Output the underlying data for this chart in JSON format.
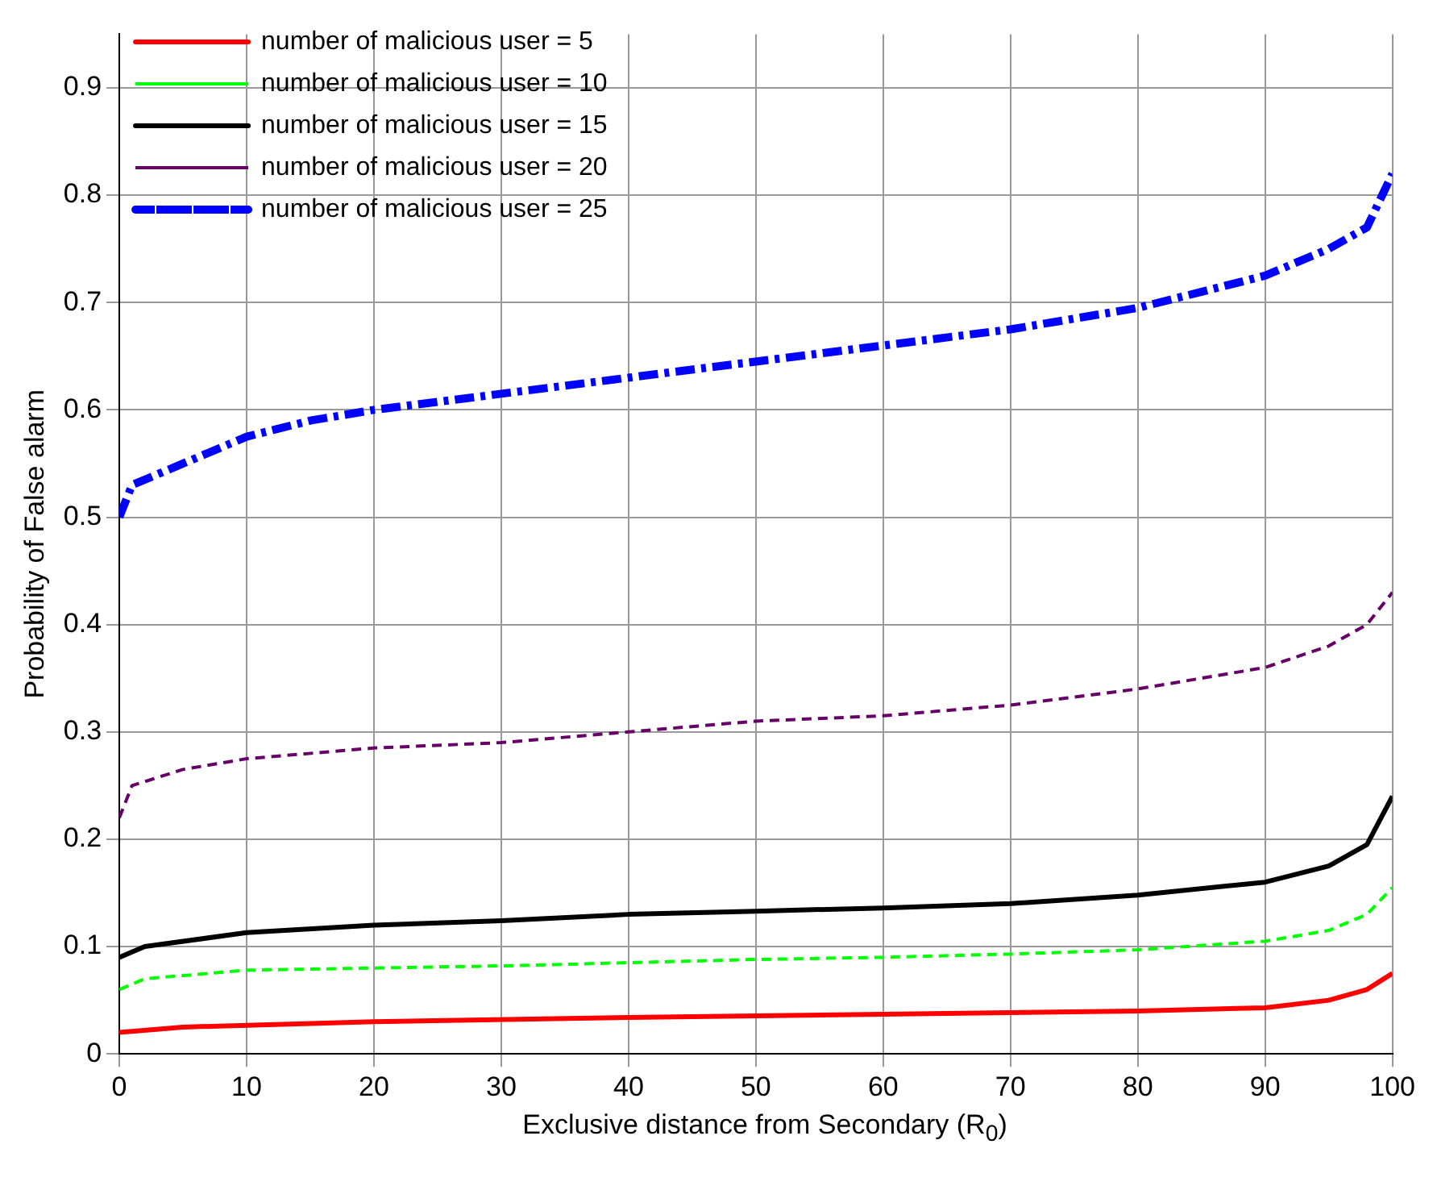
{
  "chart_data": {
    "type": "line",
    "xlabel": "Exclusive distance from Secondary (R$_{0}$)",
    "ylabel": "Probability of False alarm",
    "xlim": [
      0,
      100
    ],
    "xticks": [
      0,
      10,
      20,
      30,
      40,
      50,
      60,
      70,
      80,
      90,
      100
    ],
    "ylim": [
      0,
      0.95
    ],
    "yticks": [
      0,
      0.1,
      0.2,
      0.3,
      0.4,
      0.5,
      0.6,
      0.7,
      0.8,
      0.9
    ],
    "grid": true,
    "legend": "top left",
    "marker": "none",
    "series": [
      {
        "name": "number of malicious user = 5",
        "color": "#ff0000",
        "line_style": "solid",
        "x": [
          0,
          5,
          20,
          40,
          60,
          80,
          90,
          95,
          98,
          100
        ],
        "values": [
          0.02,
          0.025,
          0.03,
          0.034,
          0.037,
          0.04,
          0.043,
          0.05,
          0.06,
          0.075
        ]
      },
      {
        "name": "number of malicious user = 10",
        "color": "#00ff00",
        "line_style": "dashed",
        "x": [
          0,
          2,
          10,
          20,
          30,
          40,
          50,
          60,
          70,
          80,
          90,
          95,
          98,
          100
        ],
        "values": [
          0.06,
          0.07,
          0.078,
          0.08,
          0.082,
          0.085,
          0.088,
          0.09,
          0.093,
          0.097,
          0.105,
          0.115,
          0.13,
          0.155
        ]
      },
      {
        "name": "number of malicious user = 15",
        "color": "#000000",
        "line_style": "solid",
        "x": [
          0,
          2,
          10,
          20,
          30,
          40,
          50,
          60,
          70,
          80,
          90,
          95,
          98,
          100
        ],
        "values": [
          0.09,
          0.1,
          0.113,
          0.12,
          0.124,
          0.13,
          0.133,
          0.136,
          0.14,
          0.148,
          0.16,
          0.175,
          0.195,
          0.24
        ]
      },
      {
        "name": "number of malicious user = 20",
        "color": "#660066",
        "line_style": "dashed",
        "x": [
          0,
          1,
          5,
          10,
          20,
          30,
          40,
          50,
          60,
          70,
          80,
          90,
          95,
          98,
          100
        ],
        "values": [
          0.22,
          0.25,
          0.265,
          0.275,
          0.285,
          0.29,
          0.3,
          0.31,
          0.315,
          0.325,
          0.34,
          0.36,
          0.38,
          0.4,
          0.43
        ]
      },
      {
        "name": "number of malicious user = 25",
        "color": "#0000ff",
        "line_style": "dashdot",
        "x": [
          0,
          1,
          5,
          10,
          15,
          20,
          30,
          40,
          50,
          60,
          70,
          80,
          90,
          95,
          98,
          100
        ],
        "values": [
          0.5,
          0.53,
          0.55,
          0.575,
          0.59,
          0.6,
          0.615,
          0.63,
          0.645,
          0.66,
          0.675,
          0.695,
          0.725,
          0.75,
          0.77,
          0.82
        ]
      }
    ]
  }
}
